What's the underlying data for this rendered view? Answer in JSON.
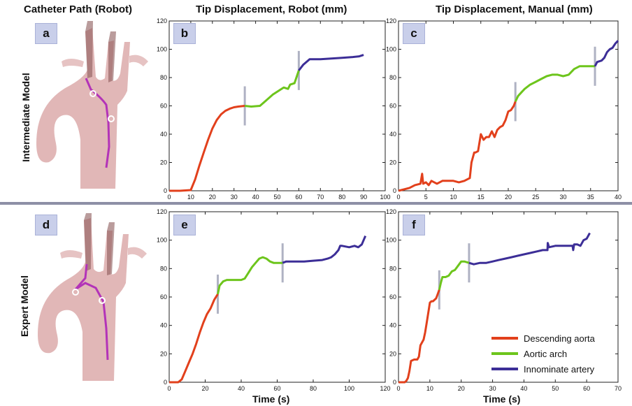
{
  "column_headers": [
    "Catheter Path (Robot)",
    "Tip Displacement, Robot (mm)",
    "Tip Displacement, Manual (mm)"
  ],
  "row_headers": [
    "Intermediate Model",
    "Expert Model"
  ],
  "x_axis_label": "Time (s)",
  "panel_letters": [
    "a",
    "b",
    "c",
    "d",
    "e",
    "f"
  ],
  "colors": {
    "descending": "#e2401c",
    "arch": "#6dc51c",
    "innominate": "#3c2e97",
    "catheter_path": "#b333b8",
    "vessel": "#dcaaaa",
    "marker_bar": "#9c9fb5"
  },
  "legend": [
    {
      "label": "Descending aorta",
      "color": "#e2401c"
    },
    {
      "label": "Aortic arch",
      "color": "#6dc51c"
    },
    {
      "label": "Innominate artery",
      "color": "#3c2e97"
    }
  ],
  "chart_data": [
    {
      "panel": "b",
      "type": "line",
      "xlim": [
        0,
        100
      ],
      "ylim": [
        0,
        120
      ],
      "xticks": [
        0,
        10,
        20,
        30,
        40,
        50,
        60,
        70,
        80,
        90,
        100
      ],
      "yticks": [
        0,
        20,
        40,
        60,
        80,
        100,
        120
      ],
      "series": [
        {
          "name": "Descending aorta",
          "x": [
            0,
            5,
            10,
            12,
            14,
            16,
            18,
            20,
            22,
            24,
            26,
            28,
            30,
            32,
            35
          ],
          "y": [
            0,
            0,
            0.5,
            8,
            18,
            27,
            36,
            44,
            50,
            54,
            56.5,
            58,
            59,
            59.5,
            60
          ]
        },
        {
          "name": "Aortic arch",
          "x": [
            35,
            38,
            42,
            45,
            48,
            51,
            53,
            55,
            56,
            58,
            60
          ],
          "y": [
            60,
            59.5,
            60,
            64,
            68,
            71,
            73,
            72,
            75,
            76,
            85
          ]
        },
        {
          "name": "Innominate artery",
          "x": [
            60,
            62,
            65,
            70,
            75,
            80,
            85,
            88,
            90
          ],
          "y": [
            85,
            89,
            93,
            93,
            93.5,
            94,
            94.5,
            95,
            96
          ]
        }
      ],
      "transitions": [
        35,
        60
      ]
    },
    {
      "panel": "c",
      "type": "line",
      "xlim": [
        0,
        40
      ],
      "ylim": [
        0,
        120
      ],
      "xticks": [
        0,
        5,
        10,
        15,
        20,
        25,
        30,
        35,
        40
      ],
      "yticks": [
        0,
        20,
        40,
        60,
        80,
        100,
        120
      ],
      "series": [
        {
          "name": "Descending aorta",
          "x": [
            0,
            1,
            2,
            3,
            4,
            4.3,
            4.5,
            5,
            5.5,
            6,
            7,
            8,
            9,
            10,
            11,
            12,
            13,
            13.3,
            13.8,
            14,
            14.5,
            15,
            15.5,
            16,
            16.5,
            17,
            17.5,
            18,
            18.5,
            19,
            19.5,
            20,
            20.5,
            21,
            21.3
          ],
          "y": [
            0,
            1,
            2,
            4,
            5,
            12,
            5,
            6,
            4,
            7,
            5,
            7,
            7,
            7,
            6,
            7,
            9,
            20,
            27,
            27,
            28,
            40,
            36,
            38,
            38,
            42,
            38,
            43,
            45,
            46,
            50,
            56,
            57,
            60,
            63
          ]
        },
        {
          "name": "Aortic arch",
          "x": [
            21.3,
            21.8,
            22.5,
            23,
            24,
            25,
            26,
            27,
            28,
            29,
            30,
            31,
            32,
            33,
            34,
            35,
            35.8
          ],
          "y": [
            63,
            67,
            70,
            72,
            75,
            77,
            79,
            81,
            82,
            82,
            81,
            82,
            86,
            88,
            88,
            88,
            88
          ]
        },
        {
          "name": "Innominate artery",
          "x": [
            35.8,
            36.2,
            37,
            37.5,
            38,
            38.5,
            39,
            39.5,
            40
          ],
          "y": [
            88,
            91,
            92,
            94,
            98,
            100,
            101,
            104,
            106
          ]
        }
      ],
      "transitions": [
        21.3,
        35.8
      ]
    },
    {
      "panel": "e",
      "type": "line",
      "xlim": [
        0,
        120
      ],
      "ylim": [
        0,
        120
      ],
      "xticks": [
        0,
        20,
        40,
        60,
        80,
        100,
        120
      ],
      "yticks": [
        0,
        20,
        40,
        60,
        80,
        100,
        120
      ],
      "series": [
        {
          "name": "Descending aorta",
          "x": [
            0,
            5,
            7,
            9,
            11,
            13,
            15,
            17,
            19,
            21,
            23,
            25,
            27
          ],
          "y": [
            0,
            0,
            2,
            8,
            14,
            20,
            27,
            35,
            42,
            48,
            52,
            58,
            62
          ]
        },
        {
          "name": "Aortic arch",
          "x": [
            27,
            28,
            30,
            32,
            36,
            40,
            42,
            44,
            46,
            48,
            50,
            52,
            54,
            56,
            58,
            60,
            63
          ],
          "y": [
            62,
            68,
            71,
            72,
            72,
            72,
            73,
            77,
            81,
            84,
            87,
            88,
            87,
            85,
            84,
            84,
            84
          ]
        },
        {
          "name": "Innominate artery",
          "x": [
            63,
            65,
            70,
            75,
            80,
            85,
            88,
            90,
            92,
            94,
            95,
            96,
            100,
            103,
            105,
            107,
            108,
            109
          ],
          "y": [
            84,
            85,
            85,
            85,
            85.5,
            86,
            87,
            88,
            90,
            93,
            96,
            96,
            95,
            96,
            95,
            97,
            100,
            103
          ]
        }
      ],
      "transitions": [
        27,
        63
      ]
    },
    {
      "panel": "f",
      "type": "line",
      "xlim": [
        0,
        70
      ],
      "ylim": [
        0,
        120
      ],
      "xticks": [
        0,
        10,
        20,
        30,
        40,
        50,
        60,
        70
      ],
      "yticks": [
        0,
        20,
        40,
        60,
        80,
        100,
        120
      ],
      "series": [
        {
          "name": "Descending aorta",
          "x": [
            0,
            2,
            2.5,
            3,
            3.5,
            4,
            5,
            6,
            6.5,
            7,
            8,
            8.5,
            9,
            10,
            10.5,
            11,
            12,
            12.5,
            13
          ],
          "y": [
            0,
            0,
            1,
            3,
            8,
            15,
            16,
            16,
            18,
            26,
            30,
            35,
            42,
            56,
            57,
            57,
            59,
            62,
            65
          ]
        },
        {
          "name": "Aortic arch",
          "x": [
            13,
            13.5,
            14,
            15,
            16,
            17,
            18,
            19,
            20,
            21,
            22.5
          ],
          "y": [
            65,
            70,
            74,
            74,
            75,
            78,
            79,
            82,
            85,
            85,
            84
          ]
        },
        {
          "name": "Innominate artery",
          "x": [
            22.5,
            24,
            26,
            28,
            30,
            32,
            34,
            36,
            38,
            40,
            42,
            44,
            46,
            47.5,
            47.6,
            48,
            50,
            52,
            54,
            55.5,
            55.7,
            56,
            57,
            58,
            59,
            60,
            61
          ],
          "y": [
            84,
            83,
            84,
            84,
            85,
            86,
            87,
            88,
            89,
            90,
            91,
            92,
            93,
            93,
            98,
            95,
            96,
            96,
            96,
            96,
            93,
            97,
            97,
            96,
            100,
            101,
            105
          ]
        }
      ],
      "transitions": [
        13,
        22.5
      ]
    }
  ]
}
